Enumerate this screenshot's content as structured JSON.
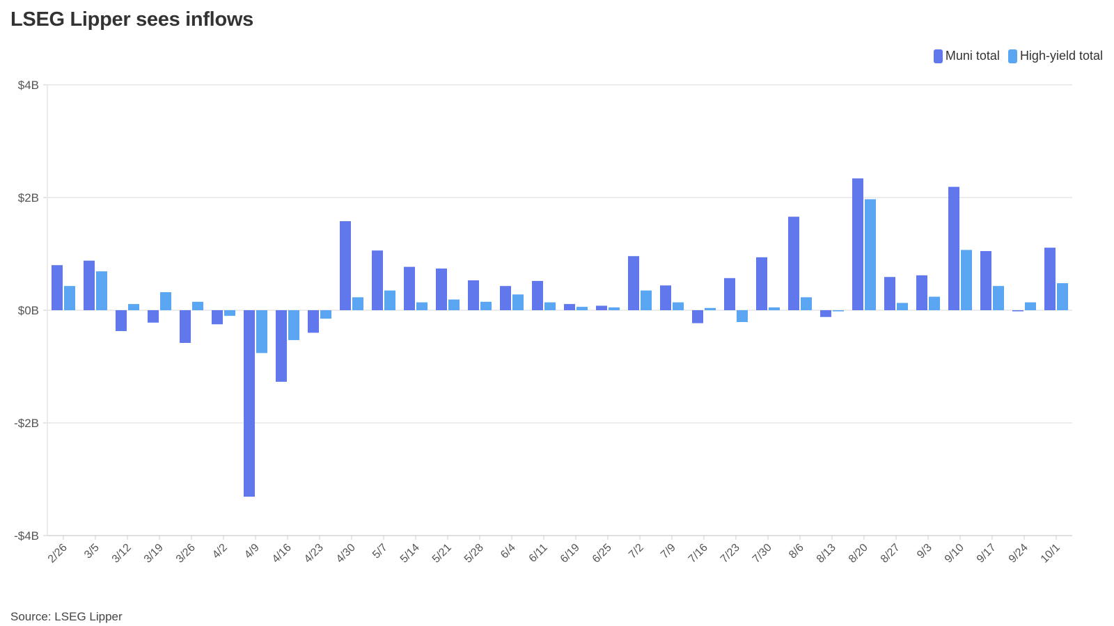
{
  "title": "LSEG Lipper sees inflows",
  "source": "Source: LSEG Lipper",
  "colors": {
    "muni": "#6178ec",
    "high_yield": "#5aa6f2",
    "grid": "#e6e6e6",
    "axis": "#cccccc"
  },
  "chart_data": {
    "type": "bar",
    "title": "LSEG Lipper sees inflows",
    "xlabel": "",
    "ylabel": "",
    "ylim": [
      -4,
      4
    ],
    "y_ticks": [
      {
        "value": 4,
        "label": "$4B"
      },
      {
        "value": 2,
        "label": "$2B"
      },
      {
        "value": 0,
        "label": "$0B"
      },
      {
        "value": -2,
        "label": "-$2B"
      },
      {
        "value": -4,
        "label": "-$4B"
      }
    ],
    "legend_position": "top-right",
    "grid": true,
    "categories": [
      "2/26",
      "3/5",
      "3/12",
      "3/19",
      "3/26",
      "4/2",
      "4/9",
      "4/16",
      "4/23",
      "4/30",
      "5/7",
      "5/14",
      "5/21",
      "5/28",
      "6/4",
      "6/11",
      "6/19",
      "6/25",
      "7/2",
      "7/9",
      "7/16",
      "7/23",
      "7/30",
      "8/6",
      "8/13",
      "8/20",
      "8/27",
      "9/3",
      "9/10",
      "9/17",
      "9/24",
      "10/1"
    ],
    "series": [
      {
        "name": "Muni total",
        "color": "#6178ec",
        "values": [
          0.8,
          0.88,
          -0.37,
          -0.22,
          -0.58,
          -0.25,
          -3.31,
          -1.27,
          -0.4,
          1.58,
          1.06,
          0.77,
          0.74,
          0.53,
          0.43,
          0.52,
          0.11,
          0.08,
          0.96,
          0.44,
          -0.23,
          0.57,
          0.94,
          1.66,
          -0.12,
          2.34,
          0.59,
          0.62,
          2.19,
          1.05,
          -0.02,
          1.11
        ]
      },
      {
        "name": "High-yield total",
        "color": "#5aa6f2",
        "values": [
          0.43,
          0.69,
          0.11,
          0.32,
          0.15,
          -0.1,
          -0.76,
          -0.53,
          -0.15,
          0.23,
          0.35,
          0.14,
          0.19,
          0.15,
          0.28,
          0.14,
          0.06,
          0.05,
          0.35,
          0.14,
          0.04,
          -0.21,
          0.05,
          0.23,
          -0.02,
          1.97,
          0.13,
          0.24,
          1.07,
          0.43,
          0.14,
          0.48
        ]
      }
    ]
  }
}
